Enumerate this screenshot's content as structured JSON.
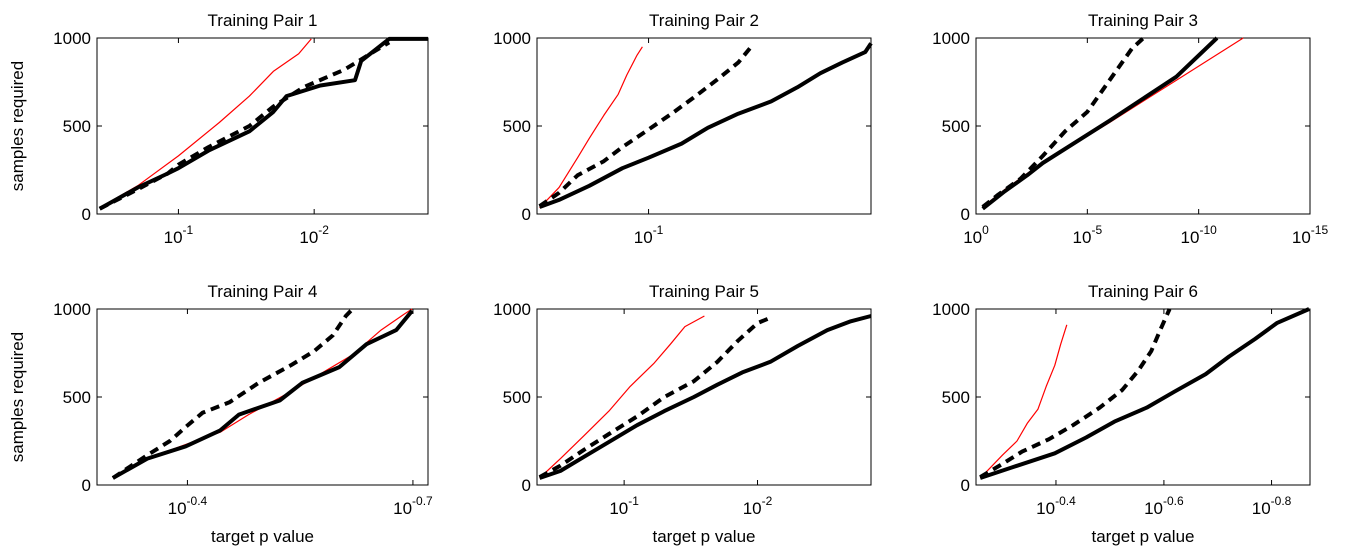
{
  "chart_data": [
    {
      "type": "line",
      "title": "Training Pair 1",
      "xlabel": "",
      "ylabel": "samples required",
      "x_scale": "log",
      "x_reversed": true,
      "xlim": [
        0.398,
        0.00145
      ],
      "ylim": [
        0,
        1000
      ],
      "x_ticks": [
        {
          "value": 0.1,
          "base": "10",
          "exp": "-1"
        },
        {
          "value": 0.01,
          "base": "10",
          "exp": "-2"
        }
      ],
      "y_ticks": [
        "0",
        "500",
        "1000"
      ],
      "series": [
        {
          "style": "thin-red",
          "points": [
            [
              0.38,
              35
            ],
            [
              0.2,
              160
            ],
            [
              0.1,
              330
            ],
            [
              0.05,
              520
            ],
            [
              0.03,
              670
            ],
            [
              0.02,
              810
            ],
            [
              0.013,
              910
            ],
            [
              0.0105,
              995
            ]
          ]
        },
        {
          "style": "bold-dashed-black",
          "points": [
            [
              0.38,
              30
            ],
            [
              0.2,
              140
            ],
            [
              0.12,
              230
            ],
            [
              0.1,
              280
            ],
            [
              0.06,
              380
            ],
            [
              0.03,
              500
            ],
            [
              0.02,
              610
            ],
            [
              0.012,
              720
            ],
            [
              0.006,
              820
            ],
            [
              0.0035,
              930
            ],
            [
              0.0028,
              975
            ]
          ]
        },
        {
          "style": "bold-solid-black",
          "points": [
            [
              0.38,
              30
            ],
            [
              0.2,
              150
            ],
            [
              0.12,
              230
            ],
            [
              0.1,
              260
            ],
            [
              0.06,
              360
            ],
            [
              0.03,
              470
            ],
            [
              0.02,
              580
            ],
            [
              0.016,
              670
            ],
            [
              0.009,
              730
            ],
            [
              0.005,
              760
            ],
            [
              0.0045,
              870
            ],
            [
              0.0028,
              995
            ],
            [
              0.0018,
              995
            ],
            [
              0.00145,
              995
            ]
          ]
        }
      ]
    },
    {
      "type": "line",
      "title": "Training Pair 2",
      "xlabel": "",
      "ylabel": "",
      "x_scale": "log",
      "x_reversed": true,
      "xlim": [
        0.562,
        0.0032
      ],
      "ylim": [
        0,
        1000
      ],
      "x_ticks": [
        {
          "value": 0.1,
          "base": "10",
          "exp": "-1"
        }
      ],
      "y_ticks": [
        "0",
        "500",
        "1000"
      ],
      "series": [
        {
          "style": "thin-red",
          "points": [
            [
              0.54,
              35
            ],
            [
              0.4,
              150
            ],
            [
              0.3,
              320
            ],
            [
              0.25,
              430
            ],
            [
              0.2,
              560
            ],
            [
              0.16,
              680
            ],
            [
              0.14,
              790
            ],
            [
              0.12,
              900
            ],
            [
              0.11,
              950
            ]
          ]
        },
        {
          "style": "bold-dashed-black",
          "points": [
            [
              0.54,
              45
            ],
            [
              0.4,
              120
            ],
            [
              0.3,
              220
            ],
            [
              0.2,
              300
            ],
            [
              0.15,
              380
            ],
            [
              0.1,
              480
            ],
            [
              0.07,
              570
            ],
            [
              0.05,
              660
            ],
            [
              0.035,
              760
            ],
            [
              0.025,
              860
            ],
            [
              0.02,
              960
            ]
          ]
        },
        {
          "style": "bold-solid-black",
          "points": [
            [
              0.54,
              40
            ],
            [
              0.4,
              80
            ],
            [
              0.25,
              160
            ],
            [
              0.15,
              260
            ],
            [
              0.1,
              320
            ],
            [
              0.06,
              400
            ],
            [
              0.04,
              490
            ],
            [
              0.025,
              570
            ],
            [
              0.015,
              640
            ],
            [
              0.01,
              720
            ],
            [
              0.007,
              800
            ],
            [
              0.005,
              860
            ],
            [
              0.0035,
              920
            ],
            [
              0.0032,
              970
            ]
          ]
        }
      ]
    },
    {
      "type": "line",
      "title": "Training Pair 3",
      "xlabel": "",
      "ylabel": "",
      "x_scale": "log",
      "x_reversed": true,
      "xlim": [
        1,
        1e-15
      ],
      "ylim": [
        0,
        1000
      ],
      "x_ticks": [
        {
          "value": 1,
          "base": "10",
          "exp": "0"
        },
        {
          "value": 1e-05,
          "base": "10",
          "exp": "-5"
        },
        {
          "value": 1e-10,
          "base": "10",
          "exp": "-10"
        },
        {
          "value": 1e-15,
          "base": "10",
          "exp": "-15"
        }
      ],
      "y_ticks": [
        "0",
        "500",
        "1000"
      ],
      "series": [
        {
          "style": "thin-red",
          "points": [
            [
              0.5,
              40
            ],
            [
              0.05,
              140
            ],
            [
              0.005,
              230
            ],
            [
              0.001,
              290
            ],
            [
              1e-06,
              520
            ],
            [
              1e-09,
              760
            ],
            [
              1e-12,
              1000
            ]
          ]
        },
        {
          "style": "bold-dashed-black",
          "points": [
            [
              0.5,
              40
            ],
            [
              0.1,
              110
            ],
            [
              0.01,
              200
            ],
            [
              0.001,
              330
            ],
            [
              0.0001,
              470
            ],
            [
              1e-05,
              580
            ],
            [
              1e-06,
              760
            ],
            [
              1e-07,
              940
            ],
            [
              3e-08,
              1000
            ]
          ]
        },
        {
          "style": "bold-solid-black",
          "points": [
            [
              0.5,
              30
            ],
            [
              0.05,
              130
            ],
            [
              0.005,
              220
            ],
            [
              0.001,
              290
            ],
            [
              1e-06,
              530
            ],
            [
              1e-09,
              780
            ],
            [
              1.5e-11,
              1000
            ]
          ]
        }
      ]
    },
    {
      "type": "line",
      "title": "Training Pair 4",
      "xlabel": "target p value",
      "ylabel": "samples required",
      "x_scale": "log",
      "x_reversed": true,
      "xlim": [
        0.525,
        0.1905
      ],
      "ylim": [
        0,
        1000
      ],
      "x_ticks": [
        {
          "value": 0.398,
          "base": "10",
          "exp": "-0.4"
        },
        {
          "value": 0.1995,
          "base": "10",
          "exp": "-0.7"
        }
      ],
      "y_ticks": [
        "0",
        "500",
        "1000"
      ],
      "series": [
        {
          "style": "thin-red",
          "points": [
            [
              0.5,
              40
            ],
            [
              0.45,
              150
            ],
            [
              0.4,
              230
            ],
            [
              0.36,
              300
            ],
            [
              0.33,
              400
            ],
            [
              0.29,
              530
            ],
            [
              0.27,
              610
            ],
            [
              0.24,
              740
            ],
            [
              0.22,
              880
            ],
            [
              0.205,
              970
            ],
            [
              0.2,
              1000
            ]
          ]
        },
        {
          "style": "bold-dashed-black",
          "points": [
            [
              0.5,
              40
            ],
            [
              0.45,
              170
            ],
            [
              0.42,
              250
            ],
            [
              0.4,
              330
            ],
            [
              0.38,
              410
            ],
            [
              0.35,
              470
            ],
            [
              0.32,
              580
            ],
            [
              0.29,
              680
            ],
            [
              0.27,
              760
            ],
            [
              0.255,
              850
            ],
            [
              0.245,
              960
            ],
            [
              0.24,
              1000
            ]
          ]
        },
        {
          "style": "bold-solid-black",
          "points": [
            [
              0.5,
              40
            ],
            [
              0.45,
              150
            ],
            [
              0.4,
              220
            ],
            [
              0.36,
              310
            ],
            [
              0.34,
              400
            ],
            [
              0.3,
              480
            ],
            [
              0.28,
              580
            ],
            [
              0.25,
              670
            ],
            [
              0.23,
              800
            ],
            [
              0.21,
              880
            ],
            [
              0.2,
              990
            ]
          ]
        }
      ]
    },
    {
      "type": "line",
      "title": "Training Pair 5",
      "xlabel": "target p value",
      "ylabel": "",
      "x_scale": "log",
      "x_reversed": true,
      "xlim": [
        0.45,
        0.00141
      ],
      "ylim": [
        0,
        1000
      ],
      "x_ticks": [
        {
          "value": 0.1,
          "base": "10",
          "exp": "-1"
        },
        {
          "value": 0.01,
          "base": "10",
          "exp": "-2"
        }
      ],
      "y_ticks": [
        "0",
        "500",
        "1000"
      ],
      "series": [
        {
          "style": "thin-red",
          "points": [
            [
              0.43,
              40
            ],
            [
              0.3,
              150
            ],
            [
              0.2,
              280
            ],
            [
              0.13,
              420
            ],
            [
              0.09,
              560
            ],
            [
              0.06,
              690
            ],
            [
              0.045,
              800
            ],
            [
              0.035,
              900
            ],
            [
              0.025,
              960
            ]
          ]
        },
        {
          "style": "bold-dashed-black",
          "points": [
            [
              0.43,
              45
            ],
            [
              0.3,
              110
            ],
            [
              0.2,
              200
            ],
            [
              0.13,
              290
            ],
            [
              0.08,
              390
            ],
            [
              0.05,
              500
            ],
            [
              0.03,
              590
            ],
            [
              0.02,
              700
            ],
            [
              0.014,
              820
            ],
            [
              0.01,
              920
            ],
            [
              0.008,
              950
            ]
          ]
        },
        {
          "style": "bold-solid-black",
          "points": [
            [
              0.43,
              40
            ],
            [
              0.3,
              80
            ],
            [
              0.2,
              160
            ],
            [
              0.12,
              260
            ],
            [
              0.08,
              340
            ],
            [
              0.05,
              420
            ],
            [
              0.03,
              500
            ],
            [
              0.02,
              570
            ],
            [
              0.013,
              640
            ],
            [
              0.008,
              700
            ],
            [
              0.005,
              790
            ],
            [
              0.003,
              880
            ],
            [
              0.002,
              930
            ],
            [
              0.00141,
              960
            ]
          ]
        }
      ]
    },
    {
      "type": "line",
      "title": "Training Pair 6",
      "xlabel": "target p value",
      "ylabel": "",
      "x_scale": "log",
      "x_reversed": true,
      "xlim": [
        0.56,
        0.1345
      ],
      "ylim": [
        0,
        1000
      ],
      "x_ticks": [
        {
          "value": 0.398,
          "base": "10",
          "exp": "-0.4"
        },
        {
          "value": 0.251,
          "base": "10",
          "exp": "-0.6"
        },
        {
          "value": 0.1585,
          "base": "10",
          "exp": "-0.8"
        }
      ],
      "y_ticks": [
        "0",
        "500",
        "1000"
      ],
      "series": [
        {
          "style": "thin-red",
          "points": [
            [
              0.55,
              40
            ],
            [
              0.53,
              90
            ],
            [
              0.5,
              170
            ],
            [
              0.47,
              250
            ],
            [
              0.45,
              350
            ],
            [
              0.43,
              430
            ],
            [
              0.415,
              560
            ],
            [
              0.4,
              680
            ],
            [
              0.39,
              800
            ],
            [
              0.38,
              910
            ]
          ]
        },
        {
          "style": "bold-dashed-black",
          "points": [
            [
              0.55,
              45
            ],
            [
              0.5,
              120
            ],
            [
              0.46,
              190
            ],
            [
              0.41,
              260
            ],
            [
              0.37,
              340
            ],
            [
              0.33,
              440
            ],
            [
              0.3,
              540
            ],
            [
              0.28,
              650
            ],
            [
              0.265,
              760
            ],
            [
              0.255,
              880
            ],
            [
              0.245,
              1000
            ]
          ]
        },
        {
          "style": "bold-solid-black",
          "points": [
            [
              0.55,
              40
            ],
            [
              0.48,
              100
            ],
            [
              0.4,
              180
            ],
            [
              0.35,
              270
            ],
            [
              0.31,
              360
            ],
            [
              0.27,
              440
            ],
            [
              0.24,
              530
            ],
            [
              0.21,
              630
            ],
            [
              0.19,
              730
            ],
            [
              0.17,
              830
            ],
            [
              0.155,
              920
            ],
            [
              0.135,
              1000
            ]
          ]
        }
      ]
    }
  ]
}
